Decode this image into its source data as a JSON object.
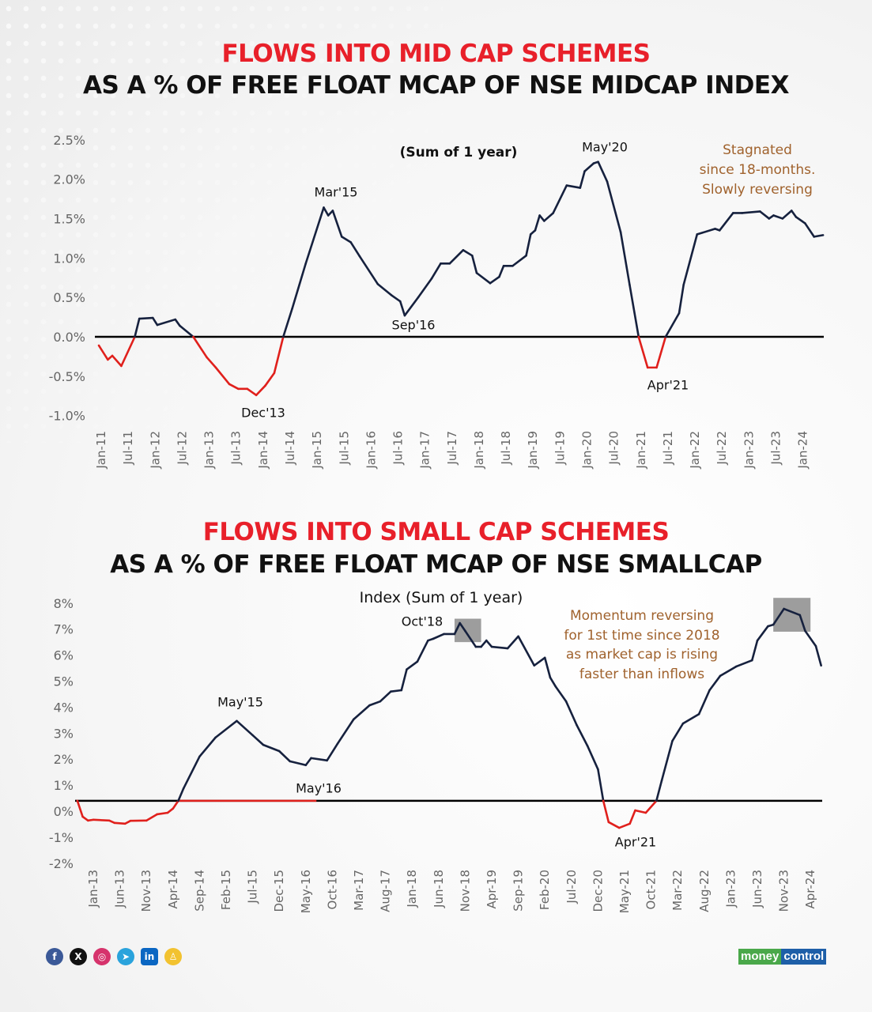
{
  "colors": {
    "positive_line": "#16213e",
    "negative_line": "#e0201c",
    "title_red": "#e8202a",
    "note_brown": "#a0622d",
    "highlight_box": "#8c8c8c"
  },
  "chart_data": [
    {
      "type": "line",
      "title": "FLOWS INTO MID CAP SCHEMES",
      "subtitle": "AS A % OF FREE FLOAT MCAP OF NSE MIDCAP INDEX",
      "caption": "(Sum of 1 year)",
      "ylim": [
        -1.0,
        2.5
      ],
      "yticks": [
        "2.5%",
        "2.0%",
        "1.5%",
        "1.0%",
        "0.5%",
        "0.0%",
        "-0.5%",
        "-1.0%"
      ],
      "ytick_values": [
        2.5,
        2.0,
        1.5,
        1.0,
        0.5,
        0.0,
        -0.5,
        -1.0
      ],
      "xticks": [
        "Jan-11",
        "Jul-11",
        "Jan-12",
        "Jul-12",
        "Jan-13",
        "Jul-13",
        "Jan-14",
        "Jul-14",
        "Jan-15",
        "Jul-15",
        "Jan-16",
        "Jul-16",
        "Jan-17",
        "Jul-17",
        "Jan-18",
        "Jul-18",
        "Jan-19",
        "Jul-19",
        "Jan-20",
        "Jul-20",
        "Jan-21",
        "Jul-21",
        "Jan-22",
        "Jul-22",
        "Jan-23",
        "Jul-23",
        "Jan-24"
      ],
      "reference_line": 0.0,
      "negative_colored_red": true,
      "grid": false,
      "x": [
        "2011-01",
        "2011-03",
        "2011-04",
        "2011-06",
        "2011-09",
        "2011-10",
        "2012-01",
        "2012-02",
        "2012-06",
        "2012-07",
        "2012-10",
        "2013-01",
        "2013-03",
        "2013-06",
        "2013-08",
        "2013-10",
        "2013-12",
        "2014-02",
        "2014-04",
        "2014-06",
        "2014-08",
        "2014-11",
        "2015-03",
        "2015-04",
        "2015-05",
        "2015-07",
        "2015-09",
        "2015-11",
        "2016-03",
        "2016-06",
        "2016-08",
        "2016-09",
        "2016-12",
        "2017-03",
        "2017-05",
        "2017-07",
        "2017-10",
        "2017-12",
        "2018-01",
        "2018-04",
        "2018-06",
        "2018-07",
        "2018-09",
        "2018-12",
        "2019-01",
        "2019-02",
        "2019-03",
        "2019-04",
        "2019-06",
        "2019-09",
        "2019-12",
        "2020-01",
        "2020-03",
        "2020-04",
        "2020-06",
        "2020-09",
        "2020-11",
        "2021-01",
        "2021-03",
        "2021-05",
        "2021-07",
        "2021-10",
        "2021-11",
        "2022-02",
        "2022-06",
        "2022-07",
        "2022-10",
        "2022-12",
        "2023-04",
        "2023-06",
        "2023-07",
        "2023-09",
        "2023-11",
        "2023-12",
        "2024-02",
        "2024-04",
        "2024-06"
      ],
      "values": [
        -0.11,
        -0.29,
        -0.24,
        -0.37,
        0.0,
        0.23,
        0.24,
        0.15,
        0.22,
        0.14,
        0.0,
        -0.26,
        -0.39,
        -0.6,
        -0.66,
        -0.66,
        -0.74,
        -0.62,
        -0.46,
        0.0,
        0.36,
        0.93,
        1.64,
        1.54,
        1.6,
        1.27,
        1.2,
        1.02,
        0.67,
        0.53,
        0.45,
        0.27,
        0.5,
        0.74,
        0.93,
        0.93,
        1.1,
        1.03,
        0.81,
        0.68,
        0.76,
        0.9,
        0.9,
        1.03,
        1.3,
        1.35,
        1.54,
        1.47,
        1.57,
        1.92,
        1.89,
        2.1,
        2.2,
        2.22,
        1.97,
        1.33,
        0.66,
        0.0,
        -0.39,
        -0.39,
        0.0,
        0.3,
        0.66,
        1.3,
        1.37,
        1.35,
        1.57,
        1.57,
        1.59,
        1.5,
        1.54,
        1.5,
        1.6,
        1.52,
        1.44,
        1.27,
        1.29
      ],
      "annotations": {
        "may20": "May'20",
        "mar15": "Mar'15",
        "sep16": "Sep'16",
        "apr21": "Apr'21",
        "dec13": "Dec'13"
      },
      "note": [
        "Stagnated",
        "since 18-months.",
        "Slowly reversing"
      ]
    },
    {
      "type": "line",
      "title": "FLOWS INTO SMALL CAP SCHEMES",
      "subtitle": "AS A % OF FREE FLOAT MCAP OF NSE SMALLCAP",
      "caption": "Index (Sum of 1 year)",
      "ylim": [
        -2,
        8
      ],
      "yticks": [
        "8%",
        "7%",
        "6%",
        "5%",
        "4%",
        "3%",
        "2%",
        "1%",
        "0%",
        "-1%",
        "-2%"
      ],
      "ytick_values": [
        8,
        7,
        6,
        5,
        4,
        3,
        2,
        1,
        0,
        -1,
        -2
      ],
      "xticks": [
        "Jan-13",
        "Jun-13",
        "Nov-13",
        "Apr-14",
        "Sep-14",
        "Feb-15",
        "Jul-15",
        "Dec-15",
        "May-16",
        "Oct-16",
        "Mar-17",
        "Aug-17",
        "Jan-18",
        "Jun-18",
        "Nov-18",
        "Apr-19",
        "Sep-19",
        "Feb-20",
        "Jul-20",
        "Dec-20",
        "May-21",
        "Oct-21",
        "Mar-22",
        "Aug-22",
        "Jan-23",
        "Jun-23",
        "Nov-23",
        "Apr-24"
      ],
      "reference_line": 0.4,
      "red_reference_segment": [
        "2014-05",
        "2016-07"
      ],
      "negative_colored_red": true,
      "grid": false,
      "x": [
        "2012-10",
        "2012-11",
        "2012-12",
        "2013-01",
        "2013-04",
        "2013-05",
        "2013-07",
        "2013-08",
        "2013-11",
        "2014-01",
        "2014-03",
        "2014-04",
        "2014-05",
        "2014-06",
        "2014-09",
        "2014-12",
        "2015-04",
        "2015-07",
        "2015-09",
        "2015-12",
        "2016-02",
        "2016-05",
        "2016-06",
        "2016-09",
        "2016-11",
        "2017-02",
        "2017-05",
        "2017-07",
        "2017-09",
        "2017-11",
        "2017-12",
        "2018-02",
        "2018-04",
        "2018-05",
        "2018-07",
        "2018-09",
        "2018-10",
        "2018-11",
        "2019-01",
        "2019-02",
        "2019-03",
        "2019-04",
        "2019-07",
        "2019-09",
        "2019-12",
        "2020-02",
        "2020-03",
        "2020-04",
        "2020-06",
        "2020-08",
        "2020-10",
        "2020-12",
        "2021-01",
        "2021-02",
        "2021-04",
        "2021-06",
        "2021-07",
        "2021-09",
        "2021-11",
        "2021-12",
        "2022-02",
        "2022-04",
        "2022-07",
        "2022-09",
        "2022-11",
        "2023-02",
        "2023-05",
        "2023-06",
        "2023-08",
        "2023-09",
        "2023-11",
        "2024-02",
        "2024-03",
        "2024-05",
        "2024-06"
      ],
      "values": [
        0.4,
        -0.21,
        -0.36,
        -0.33,
        -0.36,
        -0.45,
        -0.48,
        -0.37,
        -0.36,
        -0.12,
        -0.06,
        0.1,
        0.4,
        0.88,
        2.1,
        2.83,
        3.47,
        2.92,
        2.55,
        2.31,
        1.92,
        1.77,
        2.04,
        1.95,
        2.6,
        3.53,
        4.07,
        4.22,
        4.6,
        4.65,
        5.45,
        5.75,
        6.56,
        6.63,
        6.81,
        6.81,
        7.23,
        6.93,
        6.32,
        6.32,
        6.56,
        6.32,
        6.26,
        6.72,
        5.6,
        5.9,
        5.14,
        4.8,
        4.22,
        3.31,
        2.52,
        1.61,
        0.4,
        -0.42,
        -0.64,
        -0.48,
        0.03,
        -0.06,
        0.4,
        1.18,
        2.7,
        3.37,
        3.73,
        4.65,
        5.2,
        5.56,
        5.8,
        6.56,
        7.11,
        7.17,
        7.78,
        7.54,
        6.93,
        6.35,
        5.6
      ],
      "highlight_boxes": [
        {
          "x": [
            "2018-09",
            "2019-02"
          ],
          "y": [
            6.5,
            7.4
          ]
        },
        {
          "x": [
            "2023-09",
            "2024-04"
          ],
          "y": [
            6.9,
            8.2
          ]
        }
      ],
      "annotations": {
        "oct18": "Oct'18",
        "may15": "May'15",
        "may16": "May'16",
        "apr21": "Apr'21"
      },
      "note": [
        "Momentum reversing",
        "for 1st time since 2018",
        "as market cap is rising",
        "faster than inflows"
      ]
    }
  ],
  "footer": {
    "social_icons": [
      "facebook-icon",
      "x-icon",
      "instagram-icon",
      "telegram-icon",
      "linkedin-icon",
      "snapchat-icon"
    ],
    "social_glyphs": {
      "facebook": "f",
      "x": "X",
      "instagram": "◎",
      "telegram": "➤",
      "linkedin": "in",
      "snapchat": "♙"
    },
    "logo_part1": "money",
    "logo_part2": "control"
  }
}
